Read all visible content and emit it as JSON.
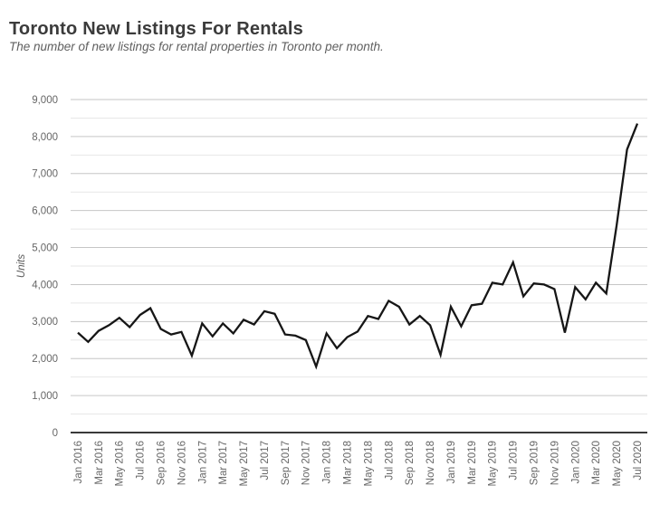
{
  "header": {
    "title": "Toronto New Listings For Rentals",
    "subtitle": "The number of new listings for rental properties in Toronto per month."
  },
  "chart_data": {
    "type": "line",
    "title": "Toronto New Listings For Rentals",
    "subtitle": "The number of new listings for rental properties in Toronto per month.",
    "xlabel": "",
    "ylabel": "Units",
    "ylim": [
      0,
      9000
    ],
    "y_major_step": 1000,
    "y_minor_step": 500,
    "grid": "on",
    "legend_position": "none",
    "x_tick_every": 2,
    "x": [
      "Jan 2016",
      "Feb 2016",
      "Mar 2016",
      "Apr 2016",
      "May 2016",
      "Jun 2016",
      "Jul 2016",
      "Aug 2016",
      "Sep 2016",
      "Oct 2016",
      "Nov 2016",
      "Dec 2016",
      "Jan 2017",
      "Feb 2017",
      "Mar 2017",
      "Apr 2017",
      "May 2017",
      "Jun 2017",
      "Jul 2017",
      "Aug 2017",
      "Sep 2017",
      "Oct 2017",
      "Nov 2017",
      "Dec 2017",
      "Jan 2018",
      "Feb 2018",
      "Mar 2018",
      "Apr 2018",
      "May 2018",
      "Jun 2018",
      "Jul 2018",
      "Aug 2018",
      "Sep 2018",
      "Oct 2018",
      "Nov 2018",
      "Dec 2018",
      "Jan 2019",
      "Feb 2019",
      "Mar 2019",
      "Apr 2019",
      "May 2019",
      "Jun 2019",
      "Jul 2019",
      "Aug 2019",
      "Sep 2019",
      "Oct 2019",
      "Nov 2019",
      "Dec 2019",
      "Jan 2020",
      "Feb 2020",
      "Mar 2020",
      "Apr 2020",
      "May 2020",
      "Jun 2020",
      "Jul 2020"
    ],
    "series": [
      {
        "name": "New Listings",
        "color": "#161616",
        "values": [
          2700,
          2450,
          2750,
          2900,
          3100,
          2850,
          3180,
          3360,
          2800,
          2650,
          2720,
          2080,
          2950,
          2600,
          2950,
          2680,
          3050,
          2920,
          3280,
          3210,
          2650,
          2620,
          2500,
          1780,
          2680,
          2280,
          2580,
          2730,
          3150,
          3070,
          3560,
          3400,
          2920,
          3150,
          2900,
          2100,
          3400,
          2870,
          3440,
          3480,
          4050,
          4000,
          4600,
          3680,
          4030,
          4000,
          3880,
          2700,
          3930,
          3600,
          4050,
          3760,
          5600,
          7650,
          8350
        ]
      }
    ],
    "colors": {
      "line": "#161616",
      "grid_major": "#c6c6c6",
      "grid_minor": "#e7e7e7",
      "axis": "#3a3a3a",
      "tick_label": "#666666"
    }
  }
}
